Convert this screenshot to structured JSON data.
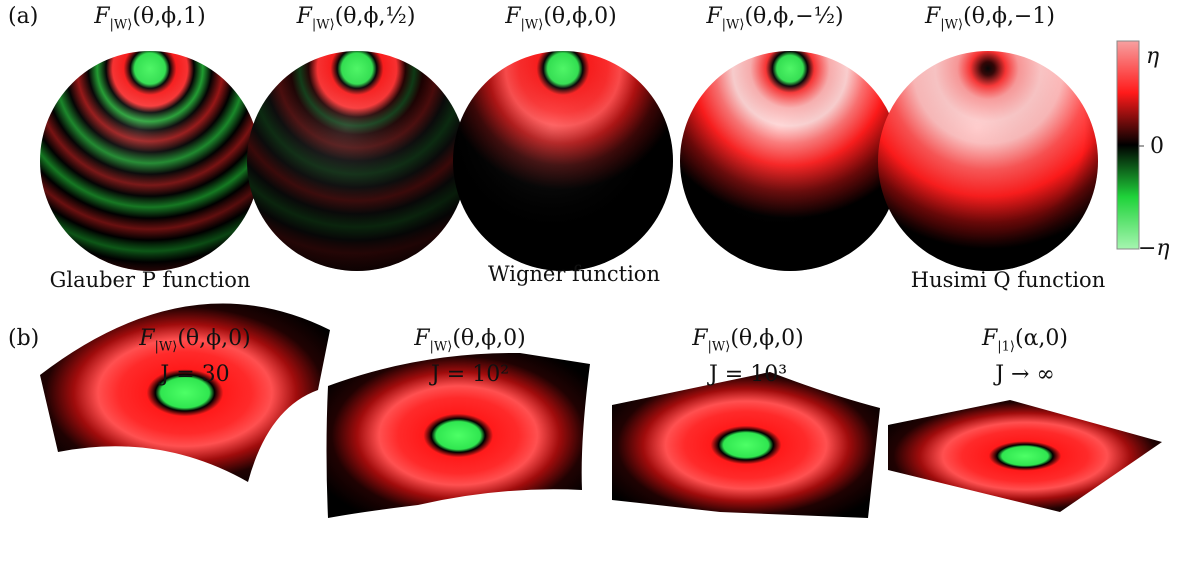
{
  "panel_a": {
    "label": "(a)",
    "spheres": [
      {
        "name": "glauber",
        "title_base": "F",
        "title_sub": "|W⟩",
        "title_args": "(θ,ϕ,1)",
        "stripes": "strong"
      },
      {
        "name": "half",
        "title_base": "F",
        "title_sub": "|W⟩",
        "title_args": "(θ,ϕ,½)",
        "stripes": "weak"
      },
      {
        "name": "wigner",
        "title_base": "F",
        "title_sub": "|W⟩",
        "title_args": "(θ,ϕ,0)",
        "stripes": "none"
      },
      {
        "name": "neg-half",
        "title_base": "F",
        "title_sub": "|W⟩",
        "title_args": "(θ,ϕ,−½)",
        "stripes": "none"
      },
      {
        "name": "husimi",
        "title_base": "F",
        "title_sub": "|W⟩",
        "title_args": "(θ,ϕ,−1)",
        "stripes": "none"
      }
    ],
    "captions": {
      "glauber": "Glauber P function",
      "wigner": "Wigner function",
      "husimi": "Husimi Q function"
    },
    "colorbar": {
      "top": "η",
      "middle": "0",
      "bottom": "−η",
      "colors": {
        "top": "#f7a0a0",
        "upper": "#ff1a1a",
        "mid": "#000000",
        "lower": "#1fd33a",
        "bottom": "#a6f5b0"
      }
    }
  },
  "panel_b": {
    "label": "(b)",
    "surfaces": [
      {
        "name": "j30",
        "title_base": "F",
        "title_sub": "|W⟩",
        "title_args": "(θ,ϕ,0)",
        "j_label": "J = 30"
      },
      {
        "name": "j100",
        "title_base": "F",
        "title_sub": "|W⟩",
        "title_args": "(θ,ϕ,0)",
        "j_label": "J = 10²"
      },
      {
        "name": "j1000",
        "title_base": "F",
        "title_sub": "|W⟩",
        "title_args": "(θ,ϕ,0)",
        "j_label": "J = 10³"
      },
      {
        "name": "jinf",
        "title_base": "F",
        "title_sub": "|1⟩",
        "title_args": "(α,0)",
        "j_label": "J → ∞"
      }
    ]
  }
}
